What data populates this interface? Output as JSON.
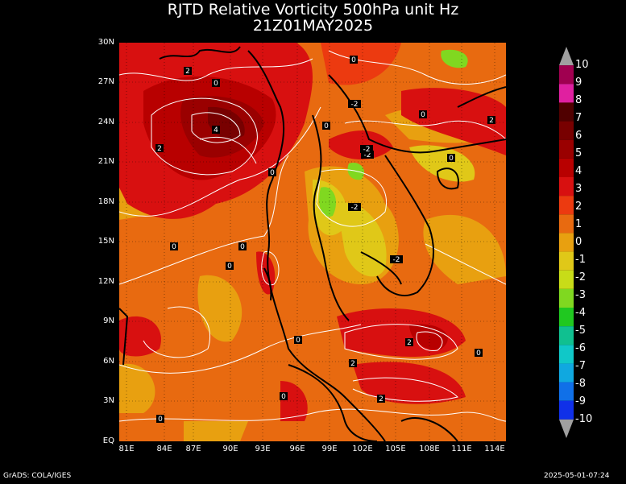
{
  "title_line1": "RJTD Relative Vorticity 500hPa unit Hz",
  "title_line2": "21Z01MAY2025",
  "footer_left": "GrADS: COLA/IGES",
  "footer_right": "2025-05-01-07:24",
  "y_ticks": [
    "30N",
    "27N",
    "24N",
    "21N",
    "18N",
    "15N",
    "12N",
    "9N",
    "6N",
    "3N",
    "EQ"
  ],
  "x_ticks": [
    "81E",
    "84E",
    "87E",
    "90E",
    "93E",
    "96E",
    "99E",
    "102E",
    "105E",
    "108E",
    "111E",
    "114E"
  ],
  "colorbar": {
    "labels": [
      "10",
      "9",
      "8",
      "7",
      "6",
      "5",
      "4",
      "3",
      "2",
      "1",
      "0",
      "-1",
      "-2",
      "-3",
      "-4",
      "-5",
      "-6",
      "-7",
      "-8",
      "-9",
      "-10"
    ],
    "colors": [
      "#a0a0a0",
      "#a00050",
      "#e020a0",
      "#500000",
      "#780000",
      "#9a0000",
      "#b80000",
      "#d81010",
      "#ec3a10",
      "#e86a10",
      "#e8a010",
      "#e0c818",
      "#c8dc18",
      "#80d820",
      "#20c820",
      "#10c090",
      "#10c8c8",
      "#10a8e0",
      "#1070e8",
      "#1030e8",
      "#a0a0a0"
    ]
  },
  "contour_labels": [
    "2",
    "0",
    "-2",
    "4",
    "2",
    "0",
    "-2",
    "0",
    "-2",
    "-2",
    "0",
    "2",
    "0",
    "0",
    "-2",
    "0",
    "0",
    "0",
    "2",
    "2",
    "0",
    "2",
    "0",
    "0",
    "0"
  ]
}
